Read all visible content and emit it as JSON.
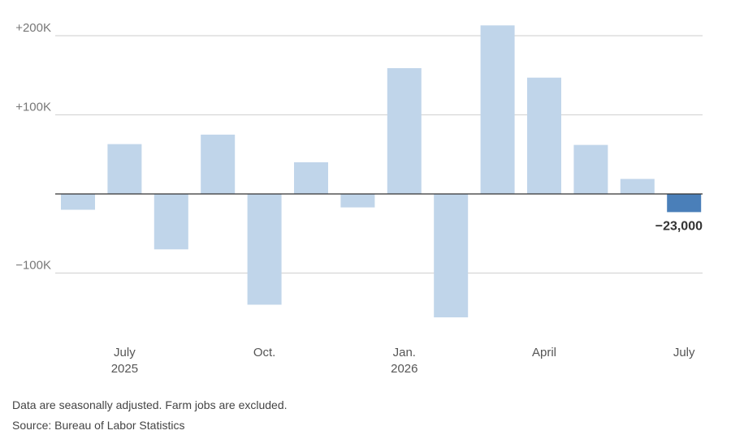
{
  "chart_data": {
    "type": "bar",
    "categories": [
      "2025-06",
      "2025-07",
      "2025-08",
      "2025-09",
      "2025-10",
      "2025-11",
      "2025-12",
      "2026-01",
      "2026-02",
      "2026-03",
      "2026-04",
      "2026-05",
      "2026-06",
      "2026-07"
    ],
    "values": [
      -20000,
      63000,
      -70000,
      75000,
      -140000,
      40000,
      -17000,
      159000,
      -156000,
      213000,
      147000,
      62000,
      19000,
      -23000
    ],
    "highlight_index": 13,
    "highlight_label": "−23,000",
    "ylim": [
      -165000,
      215000
    ],
    "y_ticks": [
      {
        "value": 200000,
        "label": "+200K"
      },
      {
        "value": 100000,
        "label": "+100K"
      },
      {
        "value": -100000,
        "label": "−100K"
      }
    ],
    "x_tick_labels": [
      {
        "index": 1,
        "line1": "July",
        "line2": "2025"
      },
      {
        "index": 4,
        "line1": "Oct.",
        "line2": ""
      },
      {
        "index": 7,
        "line1": "Jan.",
        "line2": "2026"
      },
      {
        "index": 10,
        "line1": "April",
        "line2": ""
      },
      {
        "index": 13,
        "line1": "July",
        "line2": ""
      }
    ],
    "grid": true,
    "colors": {
      "bar": "#c0d5ea",
      "highlight": "#4a7fb9",
      "grid": "#d6d6d6",
      "zero_line": "#333333"
    }
  },
  "notes": {
    "line1": "Data are seasonally adjusted. Farm jobs are excluded.",
    "line2": "Source: Bureau of Labor Statistics"
  }
}
